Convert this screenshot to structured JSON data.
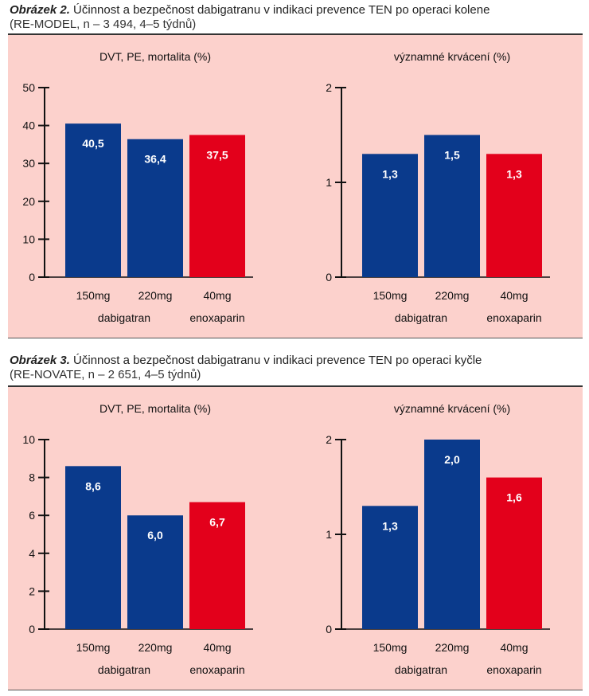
{
  "figures": [
    {
      "fig_label": "Obrázek 2.",
      "caption_line1": " Účinnost a bezpečnost dabigatranu v indikaci prevence TEN po operaci kolene",
      "caption_line2": "(RE-MODEL, n – 3 494, 4–5 týdnů)"
    },
    {
      "fig_label": "Obrázek 3.",
      "caption_line1": " Účinnost a bezpečnost dabigatranu v indikaci prevence TEN po operaci kyčle",
      "caption_line2": "(RE-NOVATE, n – 2 651, 4–5 týdnů)"
    }
  ],
  "colors": {
    "dabigatran": "#0a3a8c",
    "enoxaparin": "#e3001b",
    "panel_bg": "#fcd1cc"
  },
  "chart_data": [
    {
      "type": "bar",
      "figure": 0,
      "title": "DVT, PE, mortalita (%)",
      "categories": [
        "150mg",
        "220mg",
        "40mg"
      ],
      "groups": [
        "dabigatran",
        "enoxaparin"
      ],
      "values": [
        40.5,
        36.4,
        37.5
      ],
      "value_labels": [
        "40,5",
        "36,4",
        "37,5"
      ],
      "colors": [
        "#0a3a8c",
        "#0a3a8c",
        "#e3001b"
      ],
      "ylim": [
        0,
        50
      ],
      "yticks": [
        "0",
        "10",
        "20",
        "30",
        "40",
        "50"
      ]
    },
    {
      "type": "bar",
      "figure": 0,
      "title": "významné krvácení (%)",
      "categories": [
        "150mg",
        "220mg",
        "40mg"
      ],
      "groups": [
        "dabigatran",
        "enoxaparin"
      ],
      "values": [
        1.3,
        1.5,
        1.3
      ],
      "value_labels": [
        "1,3",
        "1,5",
        "1,3"
      ],
      "colors": [
        "#0a3a8c",
        "#0a3a8c",
        "#e3001b"
      ],
      "ylim": [
        0,
        2
      ],
      "yticks": [
        "0",
        "1",
        "2"
      ]
    },
    {
      "type": "bar",
      "figure": 1,
      "title": "DVT, PE, mortalita (%)",
      "categories": [
        "150mg",
        "220mg",
        "40mg"
      ],
      "groups": [
        "dabigatran",
        "enoxaparin"
      ],
      "values": [
        8.6,
        6.0,
        6.7
      ],
      "value_labels": [
        "8,6",
        "6,0",
        "6,7"
      ],
      "colors": [
        "#0a3a8c",
        "#0a3a8c",
        "#e3001b"
      ],
      "ylim": [
        0,
        10
      ],
      "yticks": [
        "0",
        "2",
        "4",
        "6",
        "8",
        "10"
      ]
    },
    {
      "type": "bar",
      "figure": 1,
      "title": "významné krvácení (%)",
      "categories": [
        "150mg",
        "220mg",
        "40mg"
      ],
      "groups": [
        "dabigatran",
        "enoxaparin"
      ],
      "values": [
        1.3,
        2.0,
        1.6
      ],
      "value_labels": [
        "1,3",
        "2,0",
        "1,6"
      ],
      "colors": [
        "#0a3a8c",
        "#0a3a8c",
        "#e3001b"
      ],
      "ylim": [
        0,
        2
      ],
      "yticks": [
        "0",
        "1",
        "2"
      ]
    }
  ]
}
